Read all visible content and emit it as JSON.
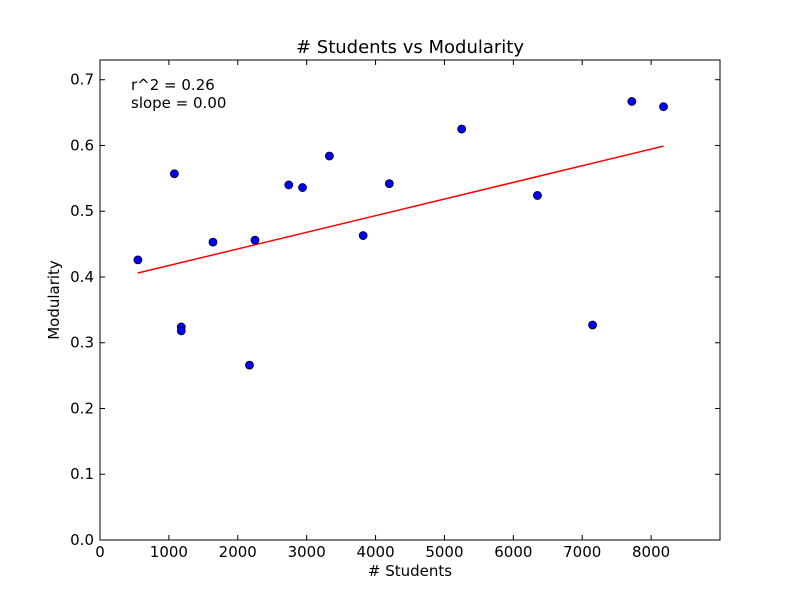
{
  "chart_data": {
    "type": "scatter",
    "title": "# Students vs Modularity",
    "xlabel": "# Students",
    "ylabel": "Modularity",
    "xlim": [
      0,
      9000
    ],
    "ylim": [
      0.0,
      0.73
    ],
    "xticks": [
      0,
      1000,
      2000,
      3000,
      4000,
      5000,
      6000,
      7000,
      8000
    ],
    "xtick_labels": [
      "0",
      "1000",
      "2000",
      "3000",
      "4000",
      "5000",
      "6000",
      "7000",
      "8000"
    ],
    "yticks": [
      0.0,
      0.1,
      0.2,
      0.3,
      0.4,
      0.5,
      0.6,
      0.7
    ],
    "ytick_labels": [
      "0.0",
      "0.1",
      "0.2",
      "0.3",
      "0.4",
      "0.5",
      "0.6",
      "0.7"
    ],
    "grid": false,
    "annotations": [
      "r^2 = 0.26",
      "slope = 0.00"
    ],
    "point_color": "#0000ff",
    "line_color": "#ff0000",
    "points": [
      {
        "x": 550,
        "y": 0.426
      },
      {
        "x": 1080,
        "y": 0.557
      },
      {
        "x": 1180,
        "y": 0.324
      },
      {
        "x": 1180,
        "y": 0.318
      },
      {
        "x": 1640,
        "y": 0.453
      },
      {
        "x": 2170,
        "y": 0.266
      },
      {
        "x": 2250,
        "y": 0.456
      },
      {
        "x": 2740,
        "y": 0.54
      },
      {
        "x": 2940,
        "y": 0.536
      },
      {
        "x": 3330,
        "y": 0.584
      },
      {
        "x": 3820,
        "y": 0.463
      },
      {
        "x": 4200,
        "y": 0.542
      },
      {
        "x": 5250,
        "y": 0.625
      },
      {
        "x": 6350,
        "y": 0.524
      },
      {
        "x": 7150,
        "y": 0.327
      },
      {
        "x": 7720,
        "y": 0.667
      },
      {
        "x": 8180,
        "y": 0.659
      }
    ],
    "fit_line": {
      "x": [
        550,
        8180
      ],
      "y": [
        0.406,
        0.599
      ]
    }
  }
}
